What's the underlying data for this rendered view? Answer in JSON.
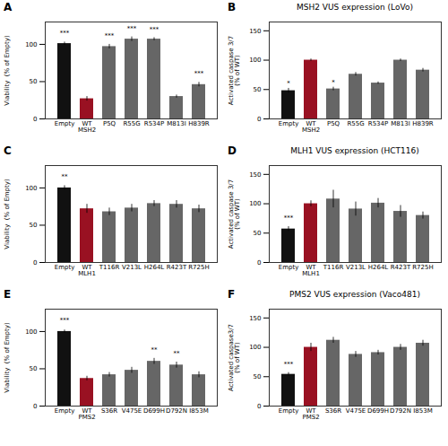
{
  "chart_data": [
    {
      "type": "bar",
      "ylabel": "Viability  (% of Empty)",
      "categories": [
        "Empty",
        "WT\nMSH2",
        "P5Q",
        "R55G",
        "R534P",
        "M813I",
        "H839R"
      ],
      "values": [
        101,
        27,
        97,
        107,
        107,
        30,
        46
      ],
      "errors": [
        2,
        3,
        3,
        3,
        2,
        2,
        3
      ],
      "colors": [
        "#111111",
        "#991122",
        "#666666",
        "#666666",
        "#666666",
        "#666666",
        "#666666"
      ],
      "annotations": [
        {
          "text": "A"
        },
        {
          "text": "***",
          "x": "Empty",
          "y": 113
        },
        {
          "text": "***",
          "x": "P5Q",
          "y": 109
        },
        {
          "text": "***",
          "x": "R55G",
          "y": 119
        },
        {
          "text": "***",
          "x": "R534P",
          "y": 117
        },
        {
          "text": "***",
          "x": "H839R",
          "y": 58
        }
      ],
      "ylim": [
        0,
        130
      ],
      "yticks": [
        0,
        50,
        100
      ],
      "grid": false
    },
    {
      "type": "bar",
      "title": "MSH2 VUS expression (LoVo)",
      "ylabel": "Activated caspase 3/7\n(% of WT)",
      "categories": [
        "Empty",
        "WT\nMSH2",
        "P5Q",
        "R55G",
        "R534P",
        "M813I",
        "H839R"
      ],
      "values": [
        48,
        100,
        51,
        76,
        61,
        100,
        83
      ],
      "errors": [
        4,
        2,
        3,
        3,
        2,
        2,
        3
      ],
      "colors": [
        "#111111",
        "#991122",
        "#666666",
        "#666666",
        "#666666",
        "#666666",
        "#666666"
      ],
      "annotations": [
        {
          "text": "B"
        },
        {
          "text": "*",
          "x": "Empty",
          "y": 57
        },
        {
          "text": "*",
          "x": "P5Q",
          "y": 59
        }
      ],
      "ylim": [
        0,
        165
      ],
      "yticks": [
        0,
        50,
        100,
        150
      ],
      "grid": false
    },
    {
      "type": "bar",
      "ylabel": "Viability  (% of Empty)",
      "categories": [
        "Empty",
        "WT\nMLH1",
        "T116R",
        "V213L",
        "H264L",
        "R423T",
        "R725H"
      ],
      "values": [
        100,
        72,
        68,
        73,
        79,
        78,
        72
      ],
      "errors": [
        3,
        6,
        5,
        5,
        4,
        5,
        5
      ],
      "colors": [
        "#111111",
        "#991122",
        "#666666",
        "#666666",
        "#666666",
        "#666666",
        "#666666"
      ],
      "annotations": [
        {
          "text": "C"
        },
        {
          "text": "**",
          "x": "Empty",
          "y": 113
        }
      ],
      "ylim": [
        0,
        130
      ],
      "yticks": [
        0,
        50,
        100
      ],
      "grid": false
    },
    {
      "type": "bar",
      "title": "MLH1 VUS expression (HCT116)",
      "ylabel": "Activated caspase 3/7\n(% of WT)",
      "categories": [
        "Empty",
        "WT\nMLH1",
        "T116R",
        "V213L",
        "H264L",
        "R423T",
        "R725H"
      ],
      "values": [
        57,
        100,
        108,
        91,
        101,
        87,
        80
      ],
      "errors": [
        4,
        5,
        15,
        12,
        8,
        10,
        6
      ],
      "colors": [
        "#111111",
        "#991122",
        "#666666",
        "#666666",
        "#666666",
        "#666666",
        "#666666"
      ],
      "annotations": [
        {
          "text": "D"
        },
        {
          "text": "***",
          "x": "Empty",
          "y": 72
        }
      ],
      "ylim": [
        0,
        165
      ],
      "yticks": [
        0,
        50,
        100,
        150
      ],
      "grid": false
    },
    {
      "type": "bar",
      "ylabel": "Viability  (% of Empty)",
      "categories": [
        "Empty",
        "WT\nPMS2",
        "S36R",
        "V475E",
        "D699H",
        "D792N",
        "I853M"
      ],
      "values": [
        100,
        37,
        42,
        48,
        60,
        55,
        42
      ],
      "errors": [
        2,
        3,
        3,
        4,
        4,
        4,
        4
      ],
      "colors": [
        "#111111",
        "#991122",
        "#666666",
        "#666666",
        "#666666",
        "#666666",
        "#666666"
      ],
      "annotations": [
        {
          "text": "E"
        },
        {
          "text": "***",
          "x": "Empty",
          "y": 112
        },
        {
          "text": "**",
          "x": "D699H",
          "y": 73
        },
        {
          "text": "**",
          "x": "D792N",
          "y": 68
        }
      ],
      "ylim": [
        0,
        130
      ],
      "yticks": [
        0,
        50,
        100
      ],
      "grid": false
    },
    {
      "type": "bar",
      "title": "PMS2 VUS expression (Vaco481)",
      "ylabel": "Activated caspase3/7\n(% of WT)",
      "categories": [
        "Empty",
        "WT\nPMS2",
        "S36R",
        "V475E",
        "D699H",
        "D792N",
        "I853M"
      ],
      "values": [
        54,
        100,
        112,
        88,
        91,
        100,
        107
      ],
      "errors": [
        3,
        7,
        5,
        5,
        4,
        5,
        5
      ],
      "colors": [
        "#111111",
        "#991122",
        "#666666",
        "#666666",
        "#666666",
        "#666666",
        "#666666"
      ],
      "annotations": [
        {
          "text": "F"
        },
        {
          "text": "***",
          "x": "Empty",
          "y": 68
        }
      ],
      "ylim": [
        0,
        165
      ],
      "yticks": [
        0,
        50,
        100,
        150
      ],
      "grid": false
    }
  ]
}
